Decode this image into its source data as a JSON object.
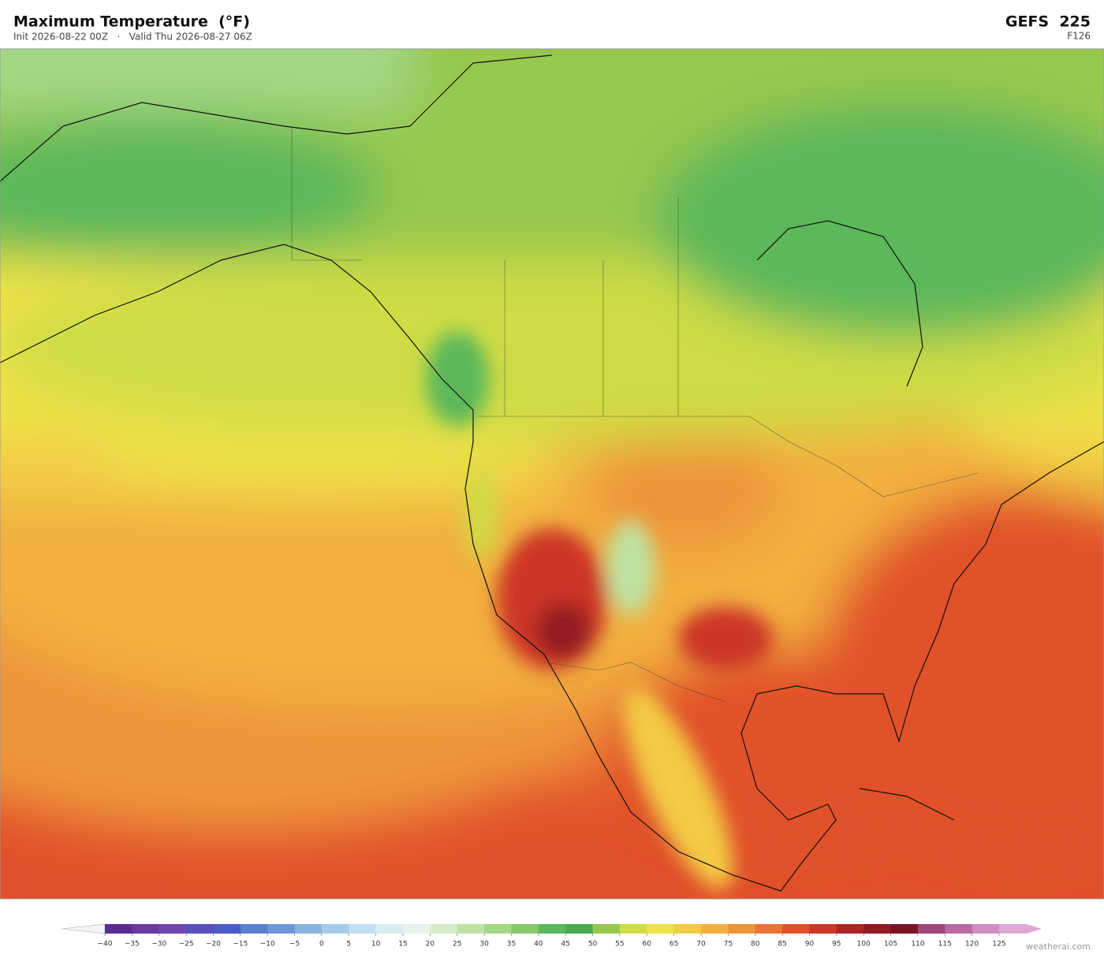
{
  "header": {
    "title": "Maximum Temperature  (°F)",
    "subtitle": "Init 2026-08-22 00Z   ·   Valid Thu 2026-08-27 06Z",
    "model": "GEFS  225",
    "forecast_hour": "F126"
  },
  "colorbar": {
    "ticks": [
      {
        "value": -40,
        "label": "−40"
      },
      {
        "value": -35,
        "label": "−35"
      },
      {
        "value": -30,
        "label": "−30"
      },
      {
        "value": -25,
        "label": "−25"
      },
      {
        "value": -20,
        "label": "−20"
      },
      {
        "value": -15,
        "label": "−15"
      },
      {
        "value": -10,
        "label": "−10"
      },
      {
        "value": -5,
        "label": "−5"
      },
      0,
      5,
      10,
      15,
      20,
      25,
      30,
      35,
      40,
      45,
      50,
      55,
      60,
      65,
      70,
      75,
      80,
      85,
      90,
      95,
      100,
      105,
      110,
      115,
      120,
      125
    ],
    "colors": [
      "#5b2c8f",
      "#6b3a9e",
      "#6f47ad",
      "#5a4dbf",
      "#4b5bc9",
      "#5c7fcf",
      "#6f96d6",
      "#89b3de",
      "#a5cbe8",
      "#c1dff0",
      "#d9ecf3",
      "#e6f3ea",
      "#d5ecc9",
      "#bde2a3",
      "#a3d784",
      "#84c96b",
      "#5cb85a",
      "#4aa94a",
      "#96c84d",
      "#cfdc45",
      "#ede246",
      "#f3cb45",
      "#f2b041",
      "#ee943a",
      "#ea7433",
      "#e1512b",
      "#cc3527",
      "#b02423",
      "#921a22",
      "#7a1422",
      "#9c4878",
      "#b96aa3",
      "#cf8dc3",
      "#dfa9d6"
    ]
  },
  "footer": {
    "credit": "weatherai.com"
  }
}
